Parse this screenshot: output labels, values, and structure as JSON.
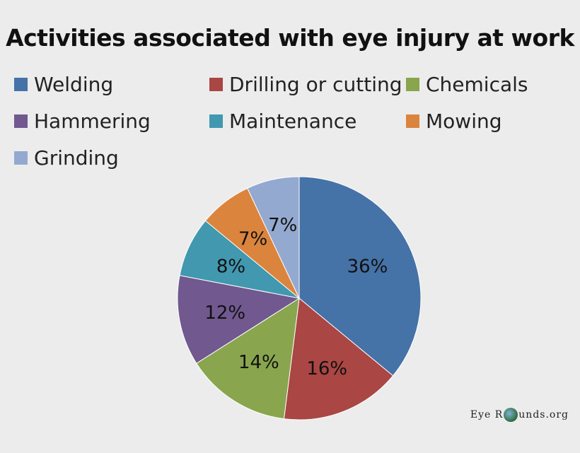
{
  "chart_data": {
    "type": "pie",
    "title": "Activities associated with eye injury at work",
    "legend_position": "top",
    "slices": [
      {
        "label": "Welding",
        "value": 36,
        "display": "36%",
        "color": "#4572a7"
      },
      {
        "label": "Drilling or cutting",
        "value": 16,
        "display": "16%",
        "color": "#aa4643"
      },
      {
        "label": "Chemicals",
        "value": 14,
        "display": "14%",
        "color": "#89a54e"
      },
      {
        "label": "Hammering",
        "value": 12,
        "display": "12%",
        "color": "#71588f"
      },
      {
        "label": "Maintenance",
        "value": 8,
        "display": "8%",
        "color": "#4198af"
      },
      {
        "label": "Mowing",
        "value": 7,
        "display": "7%",
        "color": "#db843d"
      },
      {
        "label": "Grinding",
        "value": 7,
        "display": "7%",
        "color": "#93a9cf"
      }
    ]
  },
  "watermark": {
    "left": "Eye R",
    "right": "unds.org"
  }
}
